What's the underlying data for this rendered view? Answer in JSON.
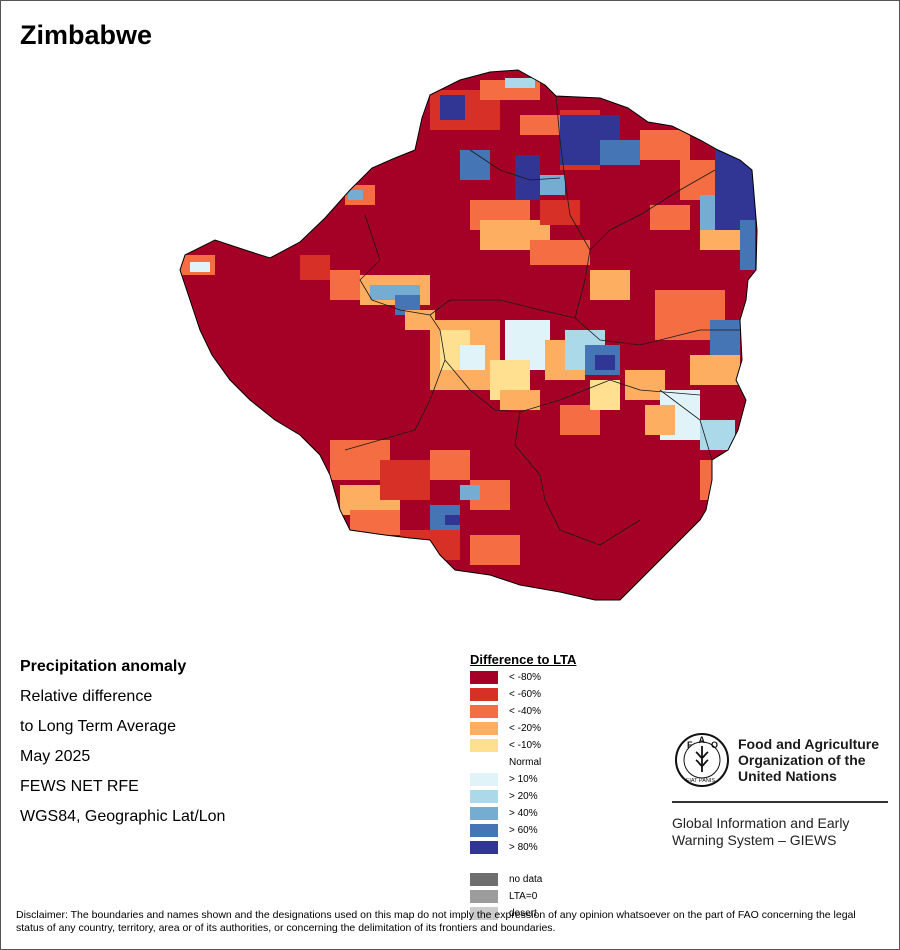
{
  "map": {
    "title": "Zimbabwe",
    "info_lines": [
      "Precipitation anomaly",
      "Relative difference",
      "to Long Term Average",
      "May 2025",
      "FEWS NET RFE",
      "WGS84, Geographic Lat/Lon"
    ],
    "legend": {
      "title": "Difference to LTA",
      "items": [
        {
          "label": "< -80%",
          "color": "#a50026"
        },
        {
          "label": "< -60%",
          "color": "#d73027"
        },
        {
          "label": "< -40%",
          "color": "#f46d43"
        },
        {
          "label": "< -20%",
          "color": "#fdae61"
        },
        {
          "label": "< -10%",
          "color": "#fee090"
        },
        {
          "label": "Normal",
          "color": "#ffffff"
        },
        {
          "label": "> 10%",
          "color": "#e0f3f8"
        },
        {
          "label": "> 20%",
          "color": "#abd9e9"
        },
        {
          "label": "> 40%",
          "color": "#74add1"
        },
        {
          "label": "> 60%",
          "color": "#4575b4"
        },
        {
          "label": "> 80%",
          "color": "#313695"
        }
      ],
      "special_items": [
        {
          "label": "no data",
          "color": "#6e6e6e"
        },
        {
          "label": "LTA=0",
          "color": "#9c9c9c"
        },
        {
          "label": "desert",
          "color": "#cccccc"
        }
      ]
    },
    "organization": {
      "logo_motto": "FIAT PANIS",
      "logo_letters": "FAO",
      "name_lines": [
        "Food and Agriculture",
        "Organization of the",
        "United Nations"
      ],
      "system_lines": [
        "Global Information and Early",
        "Warning System – GIEWS"
      ]
    },
    "disclaimer": "Disclaimer: The boundaries and names shown and the designations used on this map do not imply the expression of any opinion whatsoever on the part of FAO concerning the legal status of any country, territory, area or of its authorities, or concerning the delimitation of its frontiers and boundaries."
  }
}
